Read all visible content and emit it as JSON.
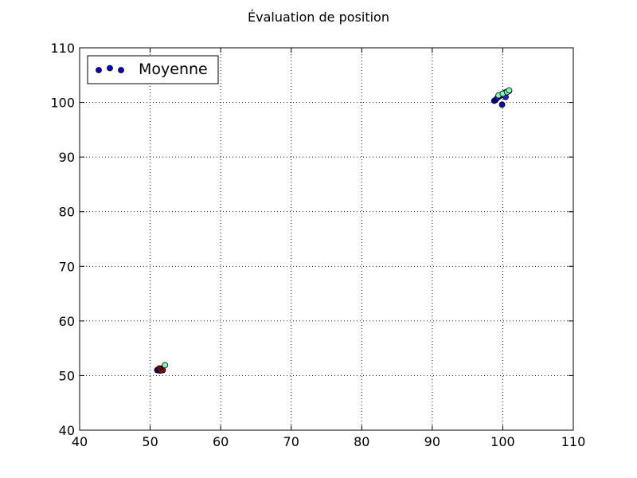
{
  "chart_data": {
    "type": "scatter",
    "title": "Évaluation de position",
    "xlabel": "",
    "ylabel": "",
    "xlim": [
      40,
      110
    ],
    "ylim": [
      40,
      110
    ],
    "xticks": [
      40,
      50,
      60,
      70,
      80,
      90,
      100,
      110
    ],
    "yticks": [
      40,
      50,
      60,
      70,
      80,
      90,
      100,
      110
    ],
    "grid": true,
    "legend": {
      "placement": "top-left",
      "entries": [
        {
          "label": "Moyenne",
          "color": "#0000bf"
        }
      ]
    },
    "series": [
      {
        "name": "Moyenne",
        "points": [
          {
            "x": 51.0,
            "y": 51.0,
            "color": "#0000bf"
          },
          {
            "x": 51.2,
            "y": 51.2,
            "color": "#1a1ad0"
          },
          {
            "x": 51.3,
            "y": 51.1,
            "color": "#000090"
          },
          {
            "x": 51.5,
            "y": 51.3,
            "color": "#0a0ab0"
          },
          {
            "x": 51.4,
            "y": 50.9,
            "color": "#2020e0"
          },
          {
            "x": 51.6,
            "y": 51.2,
            "color": "#3d1a2a"
          },
          {
            "x": 51.8,
            "y": 51.0,
            "color": "#8a1010"
          },
          {
            "x": 51.5,
            "y": 51.0,
            "color": "#b01010"
          },
          {
            "x": 51.3,
            "y": 51.3,
            "color": "#700000"
          },
          {
            "x": 52.1,
            "y": 51.9,
            "color": "#7dffb8"
          },
          {
            "x": 98.8,
            "y": 100.3,
            "color": "#0000bf"
          },
          {
            "x": 99.0,
            "y": 100.5,
            "color": "#000090"
          },
          {
            "x": 99.3,
            "y": 100.9,
            "color": "#1a1ad0"
          },
          {
            "x": 99.6,
            "y": 101.2,
            "color": "#0a0ab0"
          },
          {
            "x": 99.9,
            "y": 101.5,
            "color": "#2020e0"
          },
          {
            "x": 100.2,
            "y": 101.7,
            "color": "#000090"
          },
          {
            "x": 100.5,
            "y": 101.9,
            "color": "#0000bf"
          },
          {
            "x": 100.9,
            "y": 102.1,
            "color": "#1a1ad0"
          },
          {
            "x": 99.9,
            "y": 99.6,
            "color": "#0a0ab0"
          },
          {
            "x": 100.4,
            "y": 101.0,
            "color": "#2020e0"
          },
          {
            "x": 99.4,
            "y": 101.3,
            "color": "#7dffb8"
          },
          {
            "x": 100.0,
            "y": 101.6,
            "color": "#7dffb8"
          },
          {
            "x": 100.6,
            "y": 101.9,
            "color": "#7dffb8"
          },
          {
            "x": 100.9,
            "y": 102.2,
            "color": "#7dffb8"
          }
        ]
      }
    ]
  }
}
